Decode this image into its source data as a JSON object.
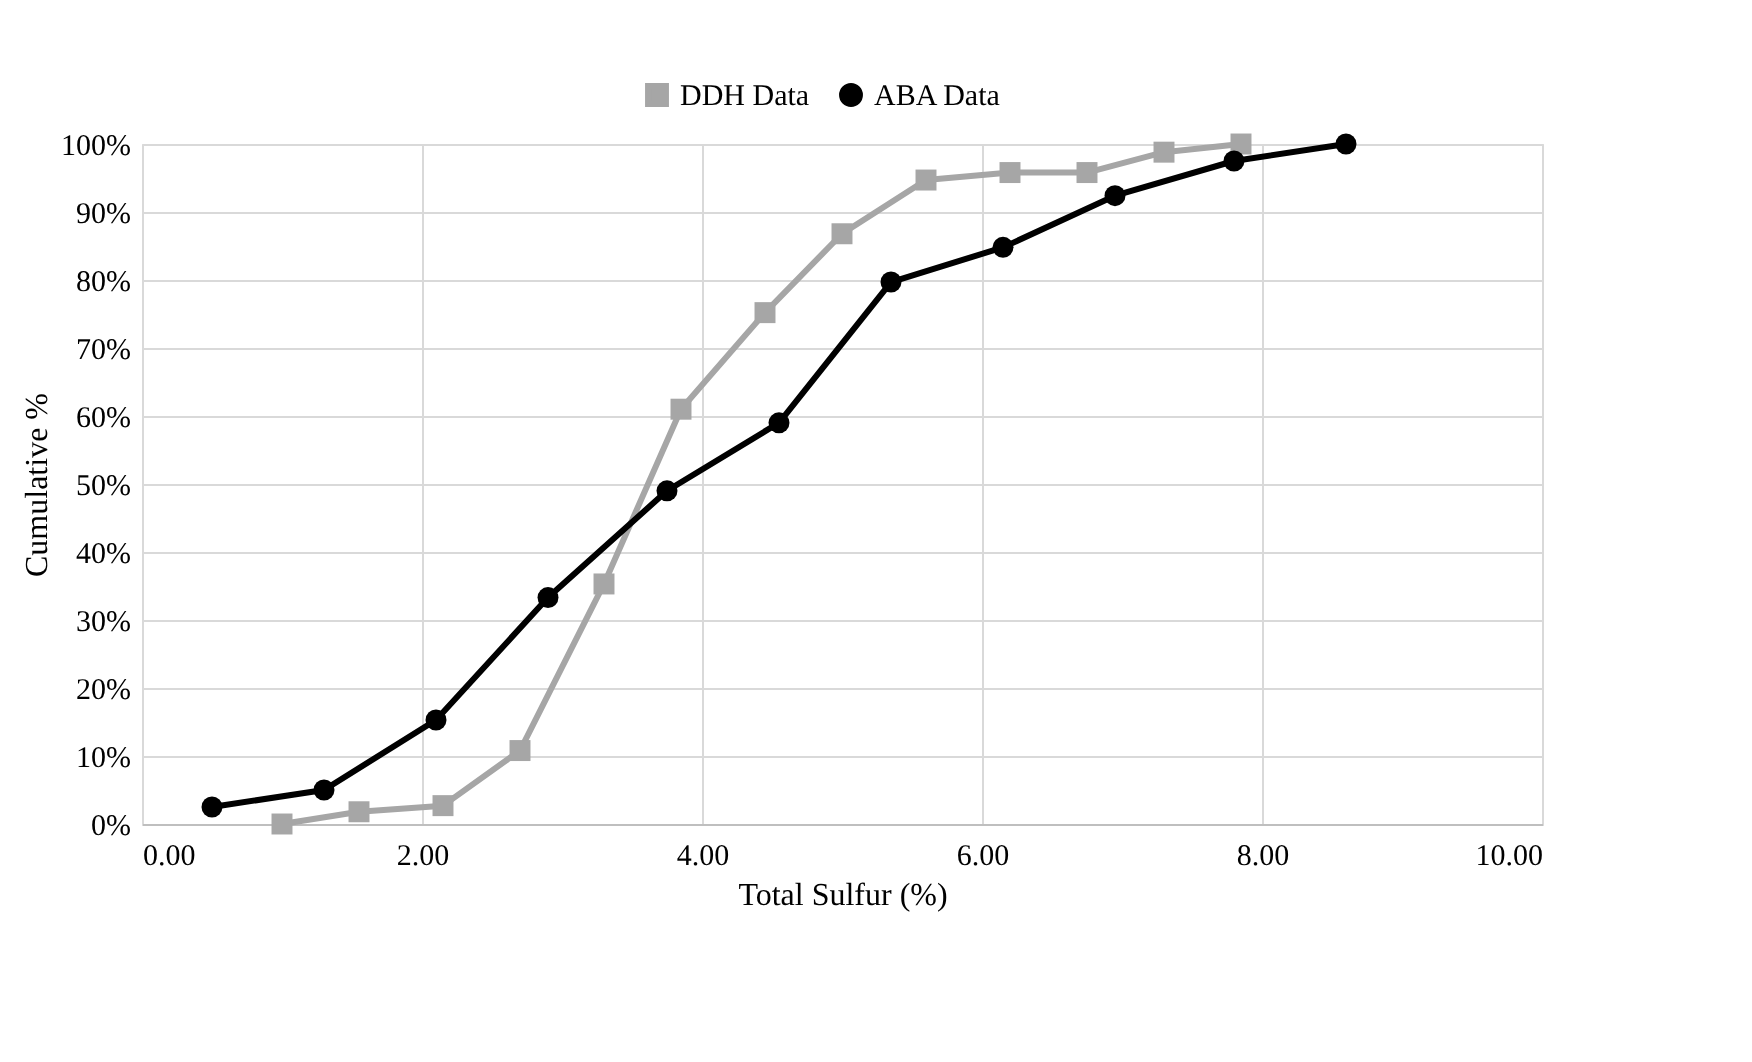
{
  "chart_data": {
    "type": "line",
    "xlabel": "Total Sulfur (%)",
    "ylabel": "Cumulative %",
    "xlim": [
      0,
      10
    ],
    "xticks": [
      {
        "value": 0,
        "label": "0.00"
      },
      {
        "value": 2,
        "label": "2.00"
      },
      {
        "value": 4,
        "label": "4.00"
      },
      {
        "value": 6,
        "label": "6.00"
      },
      {
        "value": 8,
        "label": "8.00"
      },
      {
        "value": 10,
        "label": "10.00"
      }
    ],
    "ylim": [
      0,
      100
    ],
    "yticks": [
      {
        "value": 0,
        "label": "0%"
      },
      {
        "value": 10,
        "label": "10%"
      },
      {
        "value": 20,
        "label": "20%"
      },
      {
        "value": 30,
        "label": "30%"
      },
      {
        "value": 40,
        "label": "40%"
      },
      {
        "value": 50,
        "label": "50%"
      },
      {
        "value": 60,
        "label": "60%"
      },
      {
        "value": 70,
        "label": "70%"
      },
      {
        "value": 80,
        "label": "80%"
      },
      {
        "value": 90,
        "label": "90%"
      },
      {
        "value": 100,
        "label": "100%"
      }
    ],
    "grid": true,
    "legend": "top",
    "series": [
      {
        "name": "DDH Data",
        "color": "#a6a6a6",
        "marker": "square",
        "x": [
          1.0,
          1.55,
          2.15,
          2.7,
          3.3,
          3.85,
          4.45,
          5.0,
          5.6,
          6.2,
          6.75,
          7.3,
          7.85
        ],
        "values": [
          0,
          1.8,
          2.7,
          10.8,
          35.3,
          61,
          75.2,
          86.8,
          94.7,
          95.8,
          95.8,
          98.8,
          100
        ]
      },
      {
        "name": "ABA Data",
        "color": "#000000",
        "marker": "circle",
        "x": [
          0.5,
          1.3,
          2.1,
          2.9,
          3.75,
          4.55,
          5.35,
          6.15,
          6.95,
          7.8,
          8.6
        ],
        "values": [
          2.5,
          5,
          15.3,
          33.3,
          49,
          59,
          79.7,
          84.8,
          92.4,
          97.5,
          100
        ]
      }
    ]
  }
}
